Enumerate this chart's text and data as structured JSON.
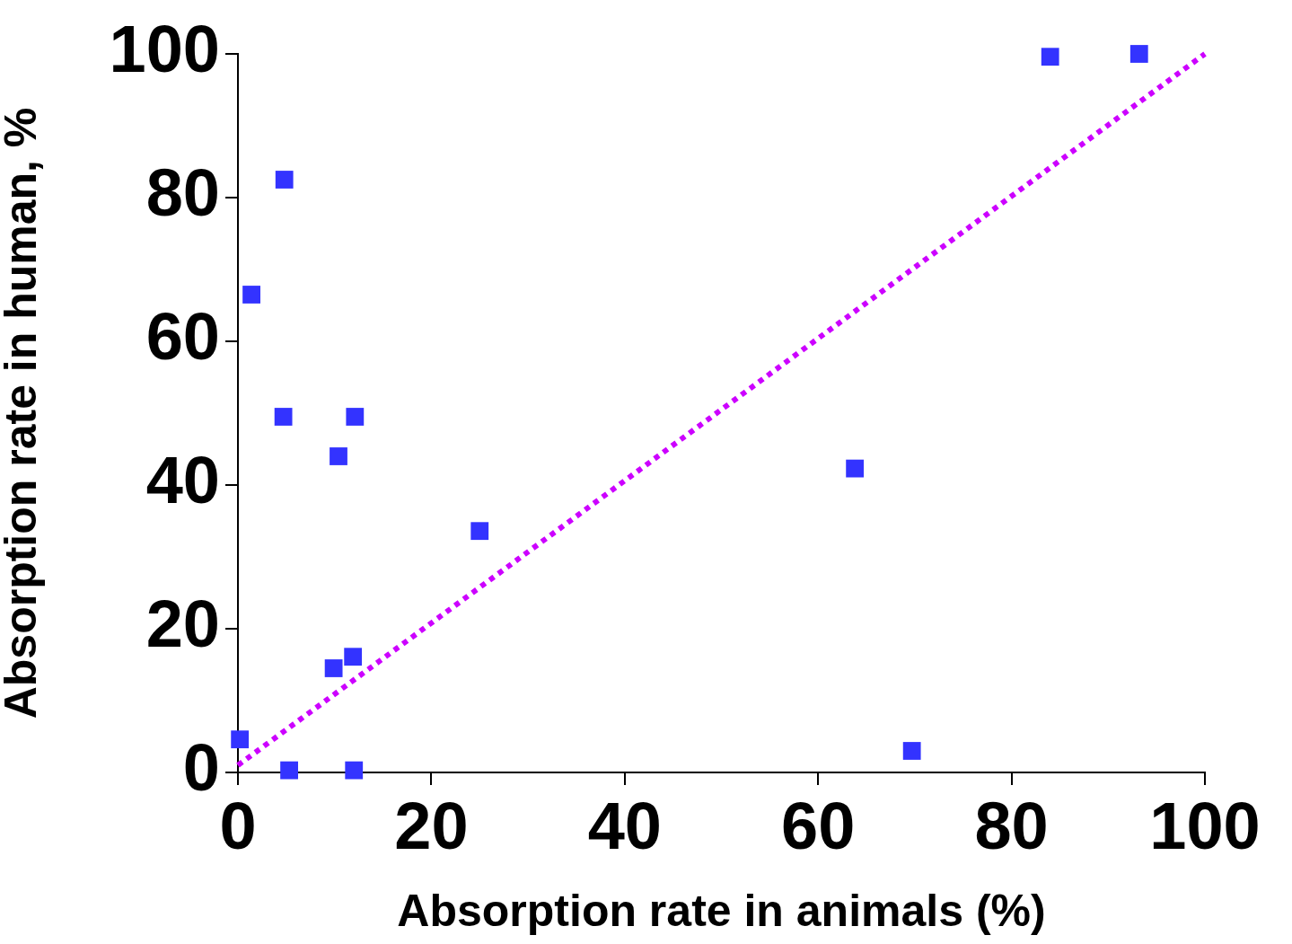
{
  "chart_data": {
    "type": "scatter",
    "xlabel": "Absorption rate in animals (%)",
    "ylabel": "Absorption rate in human, %",
    "xlim": [
      0,
      100
    ],
    "ylim": [
      0,
      100
    ],
    "xticks": [
      0,
      20,
      40,
      60,
      80,
      100
    ],
    "yticks": [
      0,
      20,
      40,
      60,
      80,
      100
    ],
    "marker": "square",
    "series": [
      {
        "color": "#3333ff",
        "x": [
          0.2,
          5.3,
          4.8,
          1.4,
          4.7,
          12.1,
          10.4,
          25,
          9.9,
          11.9,
          12,
          63.8,
          69.7,
          84,
          93.2
        ],
        "values": [
          4.6,
          0.3,
          82.5,
          66.5,
          49.5,
          49.5,
          44,
          33.6,
          14.5,
          16.1,
          0.3,
          42.3,
          3,
          99.6,
          100
        ]
      },
      {
        "type": "line",
        "color": "#cc00ff",
        "line_style": "dotted",
        "marker": "none",
        "x": [
          0,
          100
        ],
        "values": [
          1,
          100
        ]
      }
    ]
  }
}
